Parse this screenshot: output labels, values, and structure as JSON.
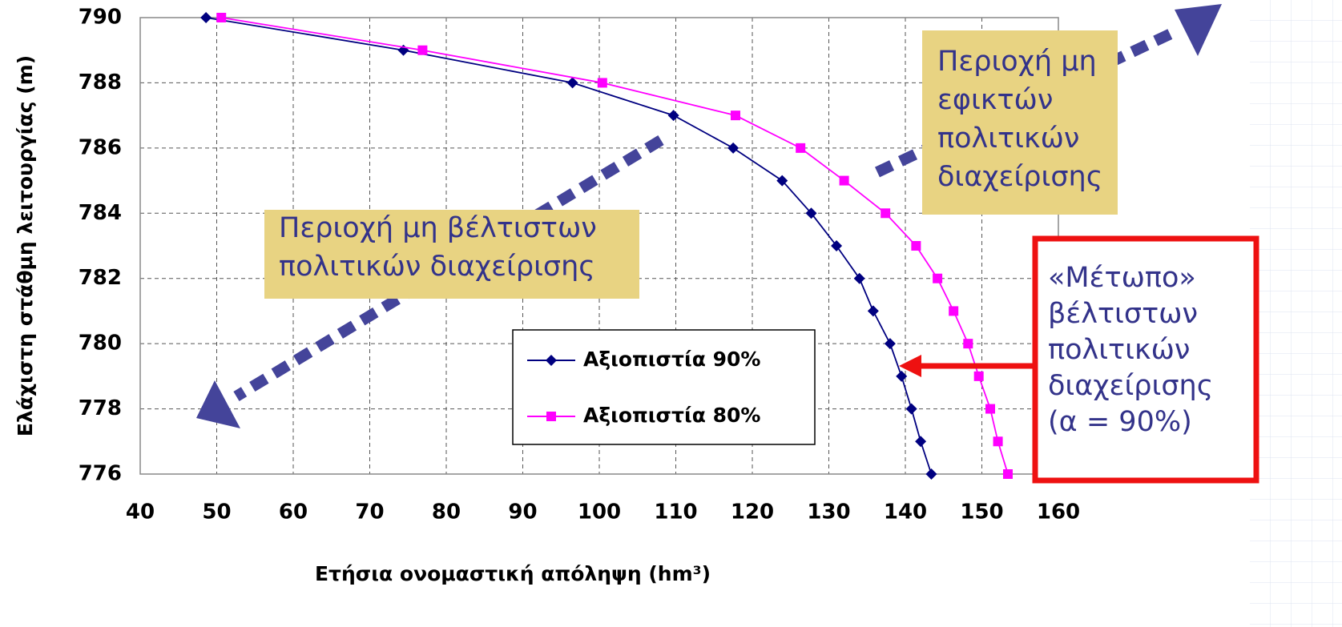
{
  "chart_data": {
    "type": "line",
    "xlabel": "Ετήσια ονομαστική απόληψη (hm³)",
    "ylabel": "Ελάχιστη στάθμη λειτουργίας (m)",
    "xlim": [
      40,
      160
    ],
    "xticks": [
      40,
      50,
      60,
      70,
      80,
      90,
      100,
      110,
      120,
      130,
      140,
      150,
      160
    ],
    "ylim": [
      776,
      790
    ],
    "yticks": [
      776,
      778,
      780,
      782,
      784,
      786,
      788,
      790
    ],
    "grid": true,
    "legend": "bottom-right",
    "series": [
      {
        "name": "Αξιοπιστία 90%",
        "color": "#000080",
        "marker": "diamond",
        "x": [
          48.6,
          74.4,
          96.5,
          109.7,
          117.5,
          123.9,
          127.7,
          131,
          134,
          135.8,
          138,
          139.5,
          140.8,
          142,
          143.4
        ],
        "values": [
          790,
          789,
          788,
          787,
          786,
          785,
          784,
          783,
          782,
          781,
          780,
          779,
          778,
          777,
          776
        ]
      },
      {
        "name": "Αξιοπιστία 80%",
        "color": "#ff00ff",
        "marker": "square",
        "x": [
          50.6,
          76.9,
          100.4,
          117.8,
          126.3,
          132,
          137.4,
          141.4,
          144.2,
          146.3,
          148.2,
          149.6,
          151.1,
          152.1,
          153.4
        ],
        "values": [
          790,
          789,
          788,
          787,
          786,
          785,
          784,
          783,
          782,
          781,
          780,
          779,
          778,
          777,
          776
        ]
      }
    ],
    "annotations": [
      {
        "lines": [
          "Περιοχή μη",
          "εφικτών",
          "πολιτικών",
          "διαχείρισης"
        ]
      },
      {
        "lines": [
          "Περιοχή μη βέλτιστων",
          "πολιτικών διαχείρισης"
        ]
      },
      {
        "lines": [
          "«Μέτωπο»",
          "βέλτιστων",
          "πολιτικών",
          "διαχείρισης",
          "(α = 90%)"
        ]
      }
    ]
  }
}
